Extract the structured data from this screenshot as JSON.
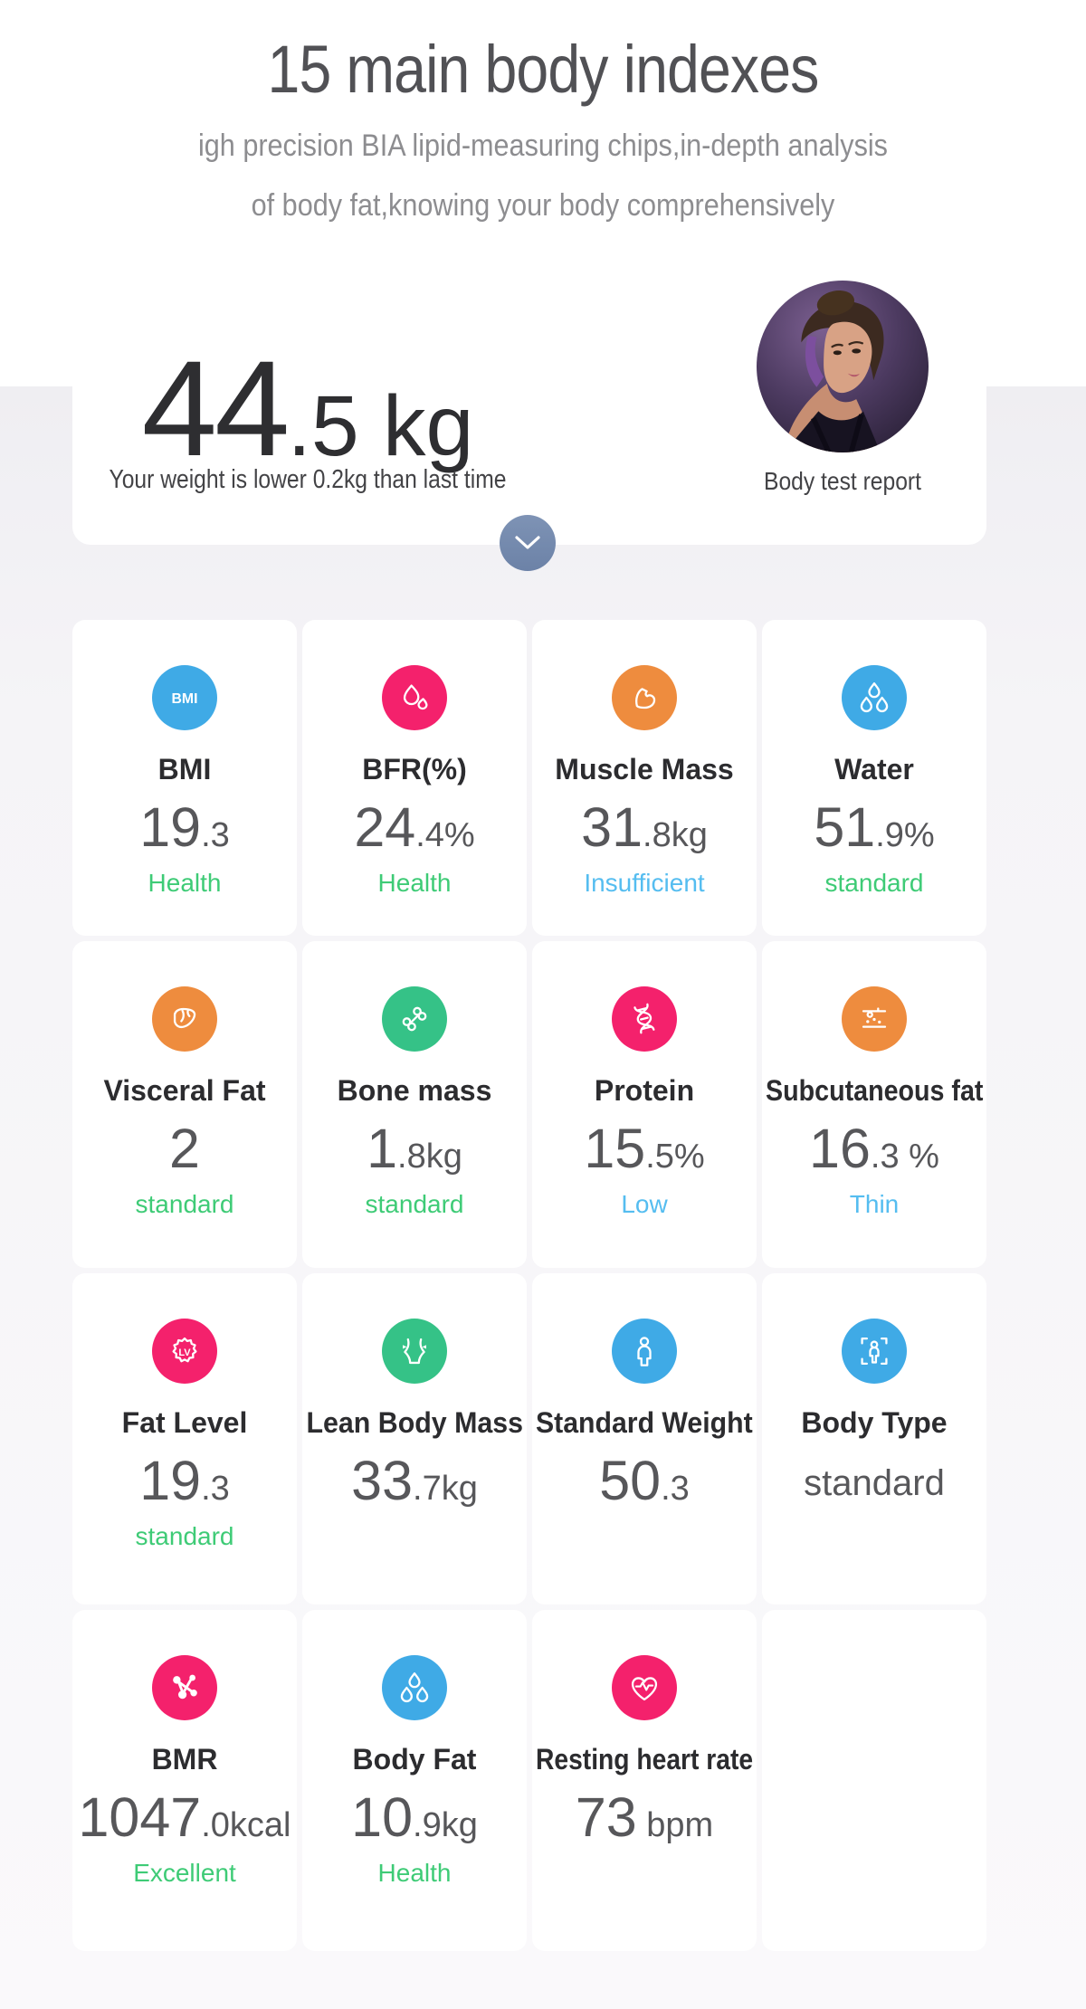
{
  "page": {
    "title": "15 main body indexes",
    "subtitle_line1": "igh precision BIA lipid-measuring chips,in-depth analysis",
    "subtitle_line2": "of body fat,knowing your body comprehensively"
  },
  "weight_card": {
    "value_big": "44",
    "value_small": ".5 kg",
    "note": "Your weight is lower 0.2kg than last time",
    "photo_caption": "Body test report",
    "expand_icon": "chevron-down-icon"
  },
  "colors": {
    "blue": "#3faae6",
    "pink": "#f4216c",
    "orange": "#ee8c3e",
    "green": "#35c287",
    "status_green": "#3ecb76",
    "status_blue": "#55bdf0",
    "chevron_button": "#7489ab"
  },
  "metrics": [
    {
      "label": "BMI",
      "icon": "bmi-icon",
      "icon_color": "blue",
      "value_big": "19",
      "value_small": ".3",
      "status": "Health",
      "status_color": "status_green"
    },
    {
      "label": "BFR(%)",
      "icon": "lipid-drop-icon",
      "icon_color": "pink",
      "value_big": "24",
      "value_small": ".4%",
      "status": "Health",
      "status_color": "status_green"
    },
    {
      "label": "Muscle Mass",
      "icon": "muscle-arm-icon",
      "icon_color": "orange",
      "value_big": "31",
      "value_small": ".8kg",
      "status": "Insufficient",
      "status_color": "status_blue"
    },
    {
      "label": "Water",
      "icon": "water-drops-icon",
      "icon_color": "blue",
      "value_big": "51",
      "value_small": ".9%",
      "status": "standard",
      "status_color": "status_green"
    },
    {
      "label": "Visceral Fat",
      "icon": "liver-icon",
      "icon_color": "orange",
      "value_big": "2",
      "value_small": "",
      "status": "standard",
      "status_color": "status_green"
    },
    {
      "label": "Bone mass",
      "icon": "bone-icon",
      "icon_color": "green",
      "value_big": "1",
      "value_small": ".8kg",
      "status": "standard",
      "status_color": "status_green"
    },
    {
      "label": "Protein",
      "icon": "dna-icon",
      "icon_color": "pink",
      "value_big": "15",
      "value_small": ".5%",
      "status": "Low",
      "status_color": "status_blue"
    },
    {
      "label": "Subcutaneous fat",
      "icon": "fat-layers-icon",
      "icon_color": "orange",
      "value_big": "16",
      "value_small": ".3 %",
      "status": "Thin",
      "status_color": "status_blue"
    },
    {
      "label": "Fat Level",
      "icon": "fat-level-badge-icon",
      "icon_color": "pink",
      "value_big": "19",
      "value_small": ".3",
      "status": "standard",
      "status_color": "status_green"
    },
    {
      "label": "Lean Body Mass",
      "icon": "lean-body-icon",
      "icon_color": "green",
      "value_big": "33",
      "value_small": ".7kg"
    },
    {
      "label": "Standard Weight",
      "icon": "person-icon",
      "icon_color": "blue",
      "value_big": "50",
      "value_small": ".3"
    },
    {
      "label": "Body Type",
      "icon": "body-frame-icon",
      "icon_color": "blue",
      "value_text": "standard"
    },
    {
      "label": "BMR",
      "icon": "molecule-icon",
      "icon_color": "pink",
      "value_big": "1047",
      "value_small": ".0kcal",
      "status": "Excellent",
      "status_color": "status_green"
    },
    {
      "label": "Body Fat",
      "icon": "body-fat-drops-icon",
      "icon_color": "blue",
      "value_big": "10",
      "value_small": ".9kg",
      "status": "Health",
      "status_color": "status_green"
    },
    {
      "label": "Resting heart rate",
      "icon": "heart-pulse-icon",
      "icon_color": "pink",
      "value_big": "73",
      "value_small": " bpm"
    }
  ]
}
